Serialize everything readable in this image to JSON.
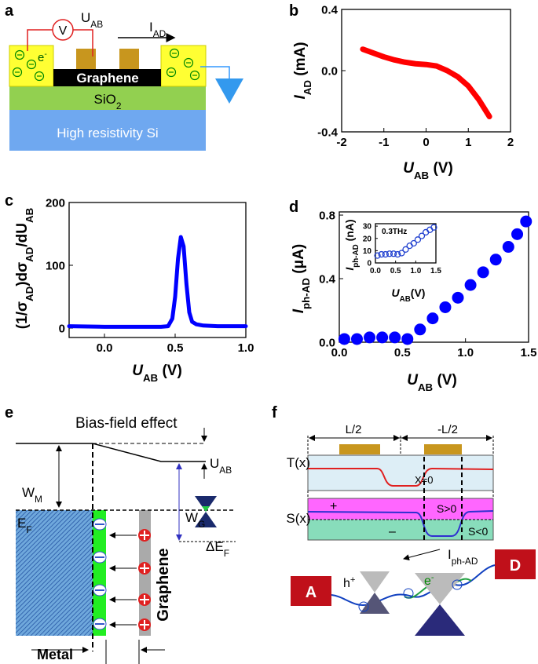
{
  "panel_labels": [
    "a",
    "b",
    "c",
    "d",
    "e",
    "f"
  ],
  "chart_data": [
    {
      "type": "line",
      "x_label": [
        {
          "text": "U",
          "style": "italic"
        },
        {
          "text": "AB",
          "style": "sub"
        },
        {
          "text": " (V)"
        }
      ],
      "y_label": [
        {
          "text": "I",
          "style": "italic"
        },
        {
          "text": "AD",
          "style": "sub"
        },
        {
          "text": " (mA)"
        }
      ],
      "xlim": [
        -2,
        2
      ],
      "xticks": [
        -2,
        -1,
        0,
        1,
        2
      ],
      "ylim": [
        -0.4,
        0.4
      ],
      "yticks": [
        -0.4,
        {
          "value": 0,
          "label": "0.0"
        },
        0.4
      ],
      "x": [
        -1.5,
        -1.25,
        -1,
        -0.75,
        -0.5,
        -0.25,
        0,
        0.25,
        0.5,
        0.75,
        1,
        1.25,
        1.5
      ],
      "series": [
        {
          "color": "#ff0000",
          "values": [
            0.14,
            0.115,
            0.09,
            0.07,
            0.055,
            0.045,
            0.04,
            0.03,
            0.0,
            -0.04,
            -0.1,
            -0.19,
            -0.3
          ]
        }
      ]
    },
    {
      "type": "line",
      "x_label": [
        {
          "text": "U",
          "style": "italic"
        },
        {
          "text": "AB",
          "style": "sub"
        },
        {
          "text": " (V)"
        }
      ],
      "y_label": [
        {
          "text": "(1/σ"
        },
        {
          "text": "AD",
          "style": "sub"
        },
        {
          "text": ")dσ"
        },
        {
          "text": "AD",
          "style": "sub"
        },
        {
          "text": "/dU"
        },
        {
          "text": "AB",
          "style": "sub"
        }
      ],
      "xlim": [
        -0.25,
        1
      ],
      "xticks": [
        {
          "value": 0,
          "label": "0.0"
        },
        0.5,
        {
          "value": 1,
          "label": "1.0"
        }
      ],
      "ylim": [
        -15,
        200
      ],
      "yticks": [
        0,
        100,
        200
      ],
      "x": [
        -0.25,
        0,
        0.2,
        0.4,
        0.45,
        0.48,
        0.5,
        0.52,
        0.54,
        0.56,
        0.58,
        0.6,
        0.62,
        0.65,
        0.7,
        0.8,
        1.0
      ],
      "series": [
        {
          "color": "#0000ff",
          "values": [
            3,
            2,
            2,
            2,
            3,
            15,
            50,
            110,
            145,
            130,
            70,
            25,
            10,
            6,
            4,
            3,
            3
          ]
        }
      ]
    },
    {
      "type": "scatter",
      "x_label": [
        {
          "text": "U",
          "style": "italic"
        },
        {
          "text": "AB",
          "style": "sub"
        },
        {
          "text": " (V)"
        }
      ],
      "y_label": [
        {
          "text": "I",
          "style": "italic"
        },
        {
          "text": "ph-AD",
          "style": "sub"
        },
        {
          "text": " (μA)"
        }
      ],
      "xlim": [
        0,
        1.5
      ],
      "xticks": [
        {
          "value": 0,
          "label": "0.0"
        },
        0.5,
        {
          "value": 1,
          "label": "1.0"
        },
        1.5
      ],
      "ylim": [
        0,
        0.82
      ],
      "yticks": [
        {
          "value": 0,
          "label": "0.0"
        },
        0.4,
        0.8
      ],
      "x": [
        0.04,
        0.14,
        0.24,
        0.34,
        0.44,
        0.54,
        0.64,
        0.74,
        0.84,
        0.94,
        1.04,
        1.14,
        1.24,
        1.34,
        1.41,
        1.48
      ],
      "series": [
        {
          "color": "#0000ff",
          "values": [
            0.02,
            0.02,
            0.03,
            0.03,
            0.03,
            0.02,
            0.08,
            0.15,
            0.22,
            0.28,
            0.36,
            0.44,
            0.52,
            0.6,
            0.68,
            0.76
          ]
        }
      ]
    },
    {
      "type": "scatter",
      "marker": "open",
      "annotation": "0.3THz",
      "x_label": [
        {
          "text": "U",
          "style": "italic"
        },
        {
          "text": "AB",
          "style": "sub"
        },
        {
          "text": "(V)"
        }
      ],
      "y_label": [
        {
          "text": "I",
          "style": "italic"
        },
        {
          "text": "ph-AD",
          "style": "sub"
        },
        {
          "text": " (nA)"
        }
      ],
      "xlim": [
        0,
        1.5
      ],
      "xticks": [
        {
          "value": 0,
          "label": "0.0"
        },
        0.5,
        {
          "value": 1,
          "label": "1.0"
        },
        1.5
      ],
      "ylim": [
        0,
        32
      ],
      "yticks": [
        0,
        10,
        20,
        30
      ],
      "x": [
        0.05,
        0.15,
        0.25,
        0.35,
        0.45,
        0.55,
        0.65,
        0.75,
        0.85,
        0.95,
        1.05,
        1.15,
        1.25,
        1.35,
        1.45
      ],
      "series": [
        {
          "color": "#1f3fcf",
          "values": [
            6,
            7,
            7,
            7.5,
            7.5,
            7,
            8,
            11,
            14,
            16,
            19,
            22,
            25,
            27,
            29
          ]
        }
      ]
    }
  ],
  "panel_a": {
    "voltmeter": "V",
    "voltage": [
      {
        "text": "U"
      },
      {
        "text": "AB",
        "style": "sub"
      }
    ],
    "current": [
      {
        "text": "I"
      },
      {
        "text": "AD",
        "style": "sub"
      }
    ],
    "electron": [
      {
        "text": "e"
      },
      {
        "text": "-",
        "style": "sup"
      }
    ],
    "graphene": "Graphene",
    "oxide": [
      {
        "text": "SiO"
      },
      {
        "text": "2",
        "style": "sub"
      }
    ],
    "substrate": "High resistivity Si"
  },
  "panel_e": {
    "title": "Bias-field effect",
    "bias": [
      {
        "text": "U"
      },
      {
        "text": "AB",
        "style": "sub"
      }
    ],
    "metal_work": [
      {
        "text": "W"
      },
      {
        "text": "M",
        "style": "sub"
      }
    ],
    "graphene_work": [
      {
        "text": "W"
      },
      {
        "text": "G",
        "style": "sub"
      }
    ],
    "fermi": [
      {
        "text": "E"
      },
      {
        "text": "F",
        "style": "sub"
      }
    ],
    "fermi_shift": [
      {
        "text": "ΔE"
      },
      {
        "text": "F",
        "style": "sub"
      }
    ],
    "graphene": "Graphene",
    "metal": "Metal"
  },
  "panel_f": {
    "half_left": "L/2",
    "half_right": "-L/2",
    "temperature": "T(x)",
    "origin": "X=0",
    "seebeck": "S(x)",
    "plus": "+",
    "minus": "–",
    "positive": "S>0",
    "negative": "S<0",
    "current": [
      {
        "text": "I"
      },
      {
        "text": "ph-AD",
        "style": "sub"
      }
    ],
    "left_contact": "A",
    "right_contact": "D",
    "hole": [
      {
        "text": "h"
      },
      {
        "text": "+",
        "style": "sup"
      }
    ],
    "electron": [
      {
        "text": "e"
      },
      {
        "text": "-",
        "style": "sup"
      }
    ]
  }
}
